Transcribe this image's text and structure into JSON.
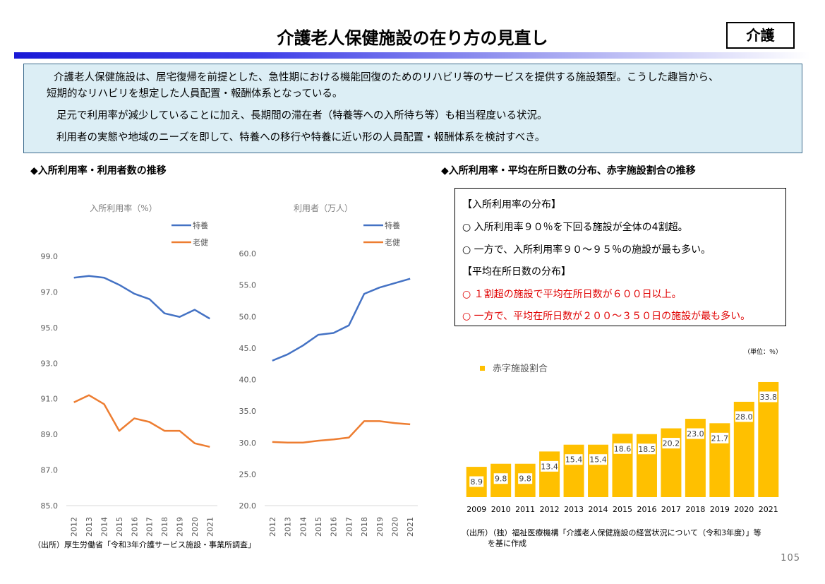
{
  "header": {
    "title": "介護老人保健施設の在り方の見直し",
    "tag": "介護"
  },
  "summary": {
    "bullet": "",
    "items": [
      "介護老人保健施設は、居宅復帰を前提とした、急性期における機能回復のためのリハビリ等のサービスを提供する施設類型。こうした趣旨から、",
      "短期的なリハビリを想定した人員配置・報酬体系となっている。",
      "足元で利用率が減少していることに加え、長期間の滞在者（特養等への入所待ち等）も相当程度いる状況。",
      "利用者の実態や地域のニーズを即して、特養への移行や特養に近い形の人員配置・報酬体系を検討すべき。"
    ]
  },
  "left_section_title": "◆入所利用率・利用者数の推移",
  "right_section_title": "◆入所利用率・平均在所日数の分布、赤字施設割合の推移",
  "distribution_box": {
    "heading1": "【入所利用率の分布】",
    "line1": "○ 入所利用率９０％を下回る施設が全体の4割超。",
    "line2": "○ 一方で、入所利用率９０～９５％の施設が最も多い。",
    "heading2": "【平均在所日数の分布】",
    "line3": "○ １割超の施設で平均在所日数が６００日以上。",
    "line4": "○ 一方で、平均在所日数が２００～３５０日の施設が最も多い。",
    "red_color": "#e00000"
  },
  "source_left": "（出所）厚生労働省「令和3年介護サービス施設・事業所調査」",
  "source_right_1": "（出所）（独）福祉医療機構「介護老人保健施設の経営状況について（令和3年度）」等",
  "source_right_2": "を基に作成",
  "page_number": "105",
  "chart_data": [
    {
      "type": "line",
      "title": "入所利用率（%）",
      "x": [
        "2012",
        "2013",
        "2014",
        "2015",
        "2016",
        "2017",
        "2018",
        "2019",
        "2020",
        "2021"
      ],
      "ylim": [
        85.0,
        99.0
      ],
      "yticks": [
        "85.0",
        "87.0",
        "89.0",
        "91.0",
        "93.0",
        "95.0",
        "97.0",
        "99.0"
      ],
      "legend_position": "top-right",
      "grid": false,
      "series": [
        {
          "name": "特養",
          "color": "#4472c4",
          "values": [
            97.8,
            97.9,
            97.8,
            97.4,
            96.9,
            96.6,
            95.8,
            95.6,
            96.0,
            95.5
          ]
        },
        {
          "name": "老健",
          "color": "#ed7d31",
          "values": [
            90.8,
            91.2,
            90.7,
            89.2,
            89.9,
            89.7,
            89.2,
            89.2,
            88.5,
            88.3
          ]
        }
      ]
    },
    {
      "type": "line",
      "title": "利用者（万人）",
      "x": [
        "2012",
        "2013",
        "2014",
        "2015",
        "2016",
        "2017",
        "2018",
        "2019",
        "2020",
        "2021"
      ],
      "ylim": [
        20.0,
        60.0
      ],
      "yticks": [
        "20.0",
        "25.0",
        "30.0",
        "35.0",
        "40.0",
        "45.0",
        "50.0",
        "55.0",
        "60.0"
      ],
      "legend_position": "top-right",
      "grid": false,
      "series": [
        {
          "name": "特養",
          "color": "#4472c4",
          "values": [
            43.0,
            44.0,
            45.4,
            47.1,
            47.4,
            48.6,
            53.6,
            54.6,
            55.3,
            56.0
          ]
        },
        {
          "name": "老健",
          "color": "#ed7d31",
          "values": [
            30.1,
            30.0,
            30.0,
            30.3,
            30.5,
            30.8,
            33.4,
            33.4,
            33.1,
            32.9
          ]
        }
      ]
    },
    {
      "type": "bar",
      "unit_note": "（単位：％）",
      "x": [
        "2009",
        "2010",
        "2011",
        "2012",
        "2013",
        "2014",
        "2015",
        "2016",
        "2017",
        "2018",
        "2019",
        "2020",
        "2021"
      ],
      "ylim": [
        0,
        34
      ],
      "legend_position": "top-left",
      "grid": false,
      "series": [
        {
          "name": "赤字施設割合",
          "color": "#ffc000",
          "values": [
            8.9,
            9.8,
            9.8,
            13.4,
            15.4,
            15.4,
            18.6,
            18.5,
            20.2,
            23.0,
            21.7,
            28.0,
            33.8
          ],
          "labels": [
            "8.9",
            "9.8",
            "9.8",
            "13.4",
            "15.4",
            "15.4",
            "18.6",
            "18.5",
            "20.2",
            "23.0",
            "21.7",
            "28.0",
            "33.8"
          ]
        }
      ]
    }
  ]
}
